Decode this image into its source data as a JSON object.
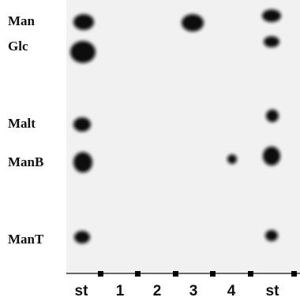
{
  "row_labels": [
    "Man",
    "Glc",
    "Malt",
    "ManB",
    "ManT"
  ],
  "lane_labels": [
    "st",
    "1",
    "2",
    "3",
    "4",
    "st"
  ]
}
